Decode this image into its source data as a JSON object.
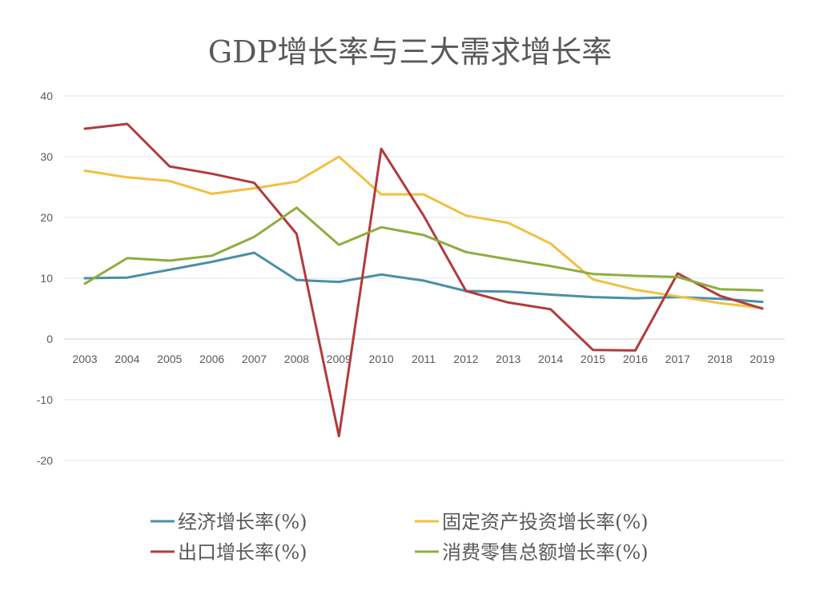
{
  "chart_data": {
    "type": "line",
    "title": "GDP增长率与三大需求增长率",
    "xlabel": "",
    "ylabel": "",
    "ylim": [
      -20,
      40
    ],
    "yticks": [
      40,
      30,
      20,
      10,
      0,
      -10,
      -20
    ],
    "grid": true,
    "legend_position": "bottom",
    "categories": [
      "2003",
      "2004",
      "2005",
      "2006",
      "2007",
      "2008",
      "2009",
      "2010",
      "2011",
      "2012",
      "2013",
      "2014",
      "2015",
      "2016",
      "2017",
      "2018",
      "2019"
    ],
    "series": [
      {
        "name": "经济增长率(%)",
        "color": "#4a8fa8",
        "values": [
          10.0,
          10.1,
          11.4,
          12.7,
          14.2,
          9.7,
          9.4,
          10.6,
          9.6,
          7.9,
          7.8,
          7.3,
          6.9,
          6.7,
          6.9,
          6.6,
          6.1
        ]
      },
      {
        "name": "固定资产投资增长率(%)",
        "color": "#f0c040",
        "values": [
          27.7,
          26.6,
          26.0,
          23.9,
          24.8,
          25.9,
          30.0,
          23.8,
          23.8,
          20.3,
          19.1,
          15.7,
          9.8,
          8.1,
          7.0,
          5.9,
          5.1
        ]
      },
      {
        "name": "出口增长率(%)",
        "color": "#b23a3a",
        "values": [
          34.6,
          35.4,
          28.4,
          27.2,
          25.7,
          17.3,
          -16.0,
          31.3,
          20.3,
          7.9,
          6.0,
          4.9,
          -1.8,
          -1.9,
          10.8,
          7.1,
          5.0
        ]
      },
      {
        "name": "消费零售总额增长率(%)",
        "color": "#8fac3e",
        "values": [
          9.1,
          13.3,
          12.9,
          13.7,
          16.8,
          21.6,
          15.5,
          18.4,
          17.1,
          14.3,
          13.1,
          12.0,
          10.7,
          10.4,
          10.2,
          8.2,
          8.0
        ]
      }
    ]
  }
}
